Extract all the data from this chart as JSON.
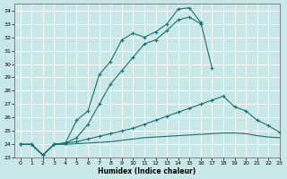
{
  "xlabel": "Humidex (Indice chaleur)",
  "bg_color": "#c8e8e8",
  "line_color": "#1a7070",
  "grid_color": "#b0d0d0",
  "xlim": [
    -0.5,
    23
  ],
  "ylim": [
    23,
    34.5
  ],
  "xticks": [
    0,
    1,
    2,
    3,
    4,
    5,
    6,
    7,
    8,
    9,
    10,
    11,
    12,
    13,
    14,
    15,
    16,
    17,
    18,
    19,
    20,
    21,
    22,
    23
  ],
  "yticks": [
    23,
    24,
    25,
    26,
    27,
    28,
    29,
    30,
    31,
    32,
    33,
    34
  ],
  "line1_x": [
    0,
    1,
    2,
    3,
    4,
    5,
    6,
    7,
    8,
    9,
    10,
    11,
    12,
    13,
    14,
    15,
    16,
    17
  ],
  "line1_y": [
    24,
    24,
    23.2,
    24,
    24.1,
    25.8,
    26.5,
    29.2,
    30.2,
    31.8,
    32.3,
    32.0,
    32.4,
    33.0,
    34.1,
    34.2,
    33.1,
    29.7
  ],
  "line2_x": [
    0,
    1,
    2,
    3,
    4,
    5,
    6,
    7,
    8,
    9,
    10,
    11,
    12,
    13,
    14,
    15,
    16
  ],
  "line2_y": [
    24,
    24,
    23.2,
    24,
    24.1,
    24.5,
    25.5,
    27.0,
    28.5,
    29.5,
    30.5,
    31.5,
    31.8,
    32.5,
    33.3,
    33.5,
    33.0
  ],
  "line3_x": [
    0,
    1,
    2,
    3,
    4,
    5,
    6,
    7,
    8,
    9,
    10,
    11,
    12,
    13,
    14,
    15,
    16,
    17,
    18,
    19,
    20,
    21,
    22,
    23
  ],
  "line3_y": [
    24,
    24,
    23.2,
    24,
    24.1,
    24.2,
    24.4,
    24.6,
    24.8,
    25.0,
    25.2,
    25.5,
    25.8,
    26.1,
    26.4,
    26.7,
    27.0,
    27.3,
    27.6,
    26.8,
    26.5,
    25.8,
    25.4,
    24.9
  ],
  "line4_x": [
    0,
    1,
    2,
    3,
    4,
    5,
    6,
    7,
    8,
    9,
    10,
    11,
    12,
    13,
    14,
    15,
    16,
    17,
    18,
    19,
    20,
    21,
    22,
    23
  ],
  "line4_y": [
    24,
    24,
    23.2,
    24,
    24.0,
    24.05,
    24.1,
    24.15,
    24.2,
    24.3,
    24.4,
    24.5,
    24.55,
    24.6,
    24.65,
    24.7,
    24.75,
    24.8,
    24.85,
    24.85,
    24.8,
    24.65,
    24.55,
    24.5
  ]
}
